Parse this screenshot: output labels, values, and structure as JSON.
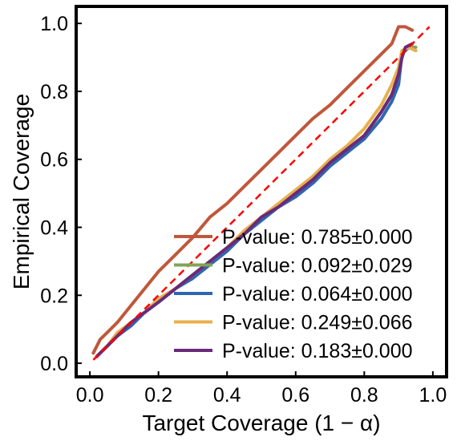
{
  "chart_data": {
    "type": "line",
    "xlabel": "Target Coverage (1 − α)",
    "ylabel": "Empirical Coverage",
    "xlim": [
      -0.04,
      1.04
    ],
    "ylim": [
      -0.04,
      1.05
    ],
    "xticks": [
      "0.0",
      "0.2",
      "0.4",
      "0.6",
      "0.8",
      "1.0"
    ],
    "yticks": [
      "0.0",
      "0.2",
      "0.4",
      "0.6",
      "0.8",
      "1.0"
    ],
    "legend_position": "lower-right",
    "grid": false,
    "reference_line": {
      "x": [
        0.01,
        0.99
      ],
      "y": [
        0.01,
        0.99
      ],
      "style": "dashed",
      "color": "#ff0000"
    },
    "series": [
      {
        "name": "P-value: 0.785±0.000",
        "color": "#c0573a",
        "x": [
          0.01,
          0.03,
          0.05,
          0.08,
          0.12,
          0.16,
          0.2,
          0.25,
          0.3,
          0.35,
          0.4,
          0.45,
          0.5,
          0.55,
          0.6,
          0.65,
          0.7,
          0.75,
          0.8,
          0.84,
          0.88,
          0.9,
          0.92,
          0.94
        ],
        "y": [
          0.03,
          0.07,
          0.09,
          0.12,
          0.17,
          0.22,
          0.27,
          0.32,
          0.37,
          0.43,
          0.47,
          0.52,
          0.57,
          0.62,
          0.67,
          0.72,
          0.76,
          0.81,
          0.86,
          0.9,
          0.94,
          0.99,
          0.99,
          0.98
        ]
      },
      {
        "name": "P-value: 0.092±0.029",
        "color": "#7fa557",
        "x": [
          0.02,
          0.05,
          0.08,
          0.12,
          0.16,
          0.2,
          0.25,
          0.3,
          0.35,
          0.4,
          0.45,
          0.5,
          0.55,
          0.6,
          0.65,
          0.7,
          0.75,
          0.8,
          0.85,
          0.88,
          0.9,
          0.91,
          0.93,
          0.95
        ],
        "y": [
          0.02,
          0.05,
          0.08,
          0.12,
          0.15,
          0.18,
          0.22,
          0.25,
          0.29,
          0.33,
          0.38,
          0.43,
          0.46,
          0.5,
          0.53,
          0.58,
          0.62,
          0.67,
          0.74,
          0.79,
          0.84,
          0.92,
          0.93,
          0.93
        ]
      },
      {
        "name": "P-value: 0.064±0.000",
        "color": "#2e67b1",
        "x": [
          0.02,
          0.05,
          0.08,
          0.12,
          0.16,
          0.2,
          0.25,
          0.3,
          0.35,
          0.4,
          0.45,
          0.5,
          0.55,
          0.6,
          0.65,
          0.7,
          0.75,
          0.8,
          0.85,
          0.88,
          0.9,
          0.91,
          0.93,
          0.95
        ],
        "y": [
          0.02,
          0.05,
          0.08,
          0.11,
          0.15,
          0.18,
          0.22,
          0.25,
          0.29,
          0.33,
          0.38,
          0.42,
          0.46,
          0.49,
          0.53,
          0.58,
          0.62,
          0.66,
          0.72,
          0.77,
          0.82,
          0.91,
          0.93,
          0.92
        ]
      },
      {
        "name": "P-value: 0.249±0.066",
        "color": "#e8b04c",
        "x": [
          0.02,
          0.05,
          0.08,
          0.12,
          0.16,
          0.2,
          0.25,
          0.3,
          0.35,
          0.4,
          0.45,
          0.5,
          0.55,
          0.6,
          0.65,
          0.7,
          0.75,
          0.8,
          0.85,
          0.88,
          0.9,
          0.91,
          0.93,
          0.95
        ],
        "y": [
          0.02,
          0.05,
          0.09,
          0.12,
          0.15,
          0.19,
          0.22,
          0.26,
          0.3,
          0.34,
          0.39,
          0.43,
          0.47,
          0.51,
          0.55,
          0.6,
          0.64,
          0.69,
          0.76,
          0.82,
          0.87,
          0.92,
          0.93,
          0.92
        ]
      },
      {
        "name": "P-value: 0.183±0.000",
        "color": "#6a2a7a",
        "x": [
          0.02,
          0.05,
          0.08,
          0.12,
          0.16,
          0.2,
          0.25,
          0.3,
          0.35,
          0.4,
          0.45,
          0.5,
          0.55,
          0.6,
          0.65,
          0.7,
          0.75,
          0.8,
          0.85,
          0.88,
          0.9,
          0.91,
          0.92,
          0.94
        ],
        "y": [
          0.02,
          0.05,
          0.08,
          0.12,
          0.15,
          0.18,
          0.22,
          0.26,
          0.3,
          0.34,
          0.38,
          0.43,
          0.46,
          0.5,
          0.54,
          0.59,
          0.63,
          0.67,
          0.74,
          0.79,
          0.85,
          0.9,
          0.93,
          0.94
        ]
      }
    ]
  }
}
